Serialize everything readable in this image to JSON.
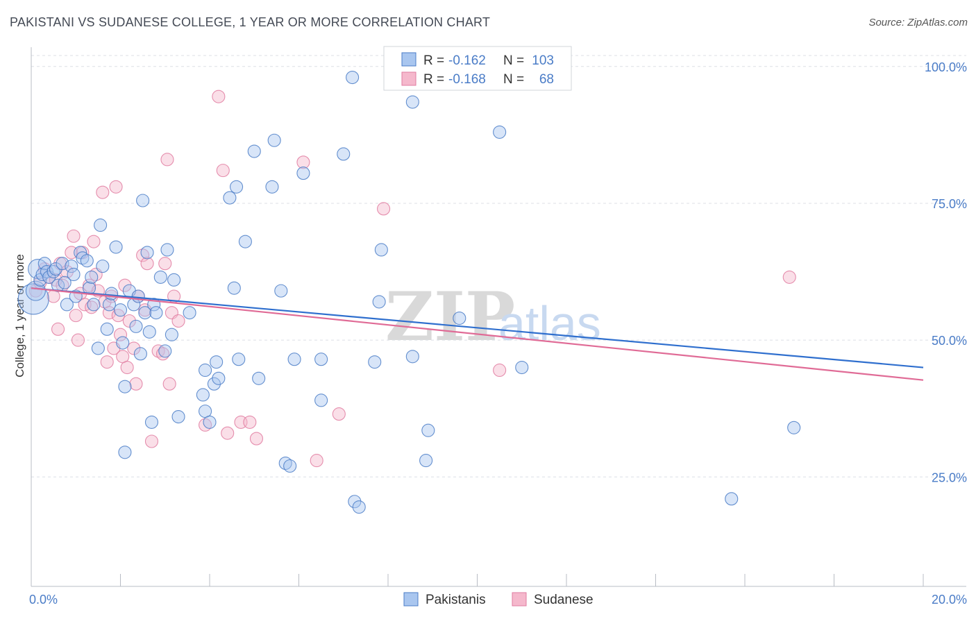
{
  "header": {
    "title": "PAKISTANI VS SUDANESE COLLEGE, 1 YEAR OR MORE CORRELATION CHART",
    "source": "Source: ZipAtlas.com"
  },
  "watermark": {
    "zip": "ZIP",
    "atlas": "atlas"
  },
  "colors": {
    "blue": "#4a7cc7",
    "blue_fill": "#a9c6ef",
    "blue_line": "#2f6fce",
    "pink": "#e07ba0",
    "pink_fill": "#f5b8cc",
    "pink_line": "#e06b96",
    "grid": "#dcdfe5"
  },
  "legend": {
    "r_label": "R =",
    "n_label": "N =",
    "rows": [
      {
        "series": "Pakistanis",
        "r": "-0.162",
        "n": "103"
      },
      {
        "series": "Sudanese",
        "r": "-0.168",
        "n": "68"
      }
    ]
  },
  "chart_data": {
    "type": "scatter",
    "title": "PAKISTANI VS SUDANESE COLLEGE, 1 YEAR OR MORE CORRELATION CHART",
    "ylabel": "College, 1 year or more",
    "xlim": [
      0,
      20
    ],
    "ylim": [
      5,
      102
    ],
    "x_tick_labels": [
      {
        "value": 0,
        "label": "0.0%"
      },
      {
        "value": 20,
        "label": "20.0%"
      }
    ],
    "y_tick_labels": [
      {
        "value": 100,
        "label": "100.0%"
      },
      {
        "value": 75,
        "label": "75.0%"
      },
      {
        "value": 50,
        "label": "50.0%"
      },
      {
        "value": 25,
        "label": "25.0%"
      }
    ],
    "grid": "horizontal dashed",
    "legend_position": "top-center",
    "series": [
      {
        "name": "Pakistanis",
        "color": "#4a7cc7",
        "trend": {
          "x": [
            0,
            20
          ],
          "y": [
            59.5,
            45.0
          ]
        },
        "points": [
          [
            0.05,
            57.5
          ],
          [
            0.1,
            59
          ],
          [
            0.15,
            63
          ],
          [
            0.2,
            61
          ],
          [
            0.25,
            62
          ],
          [
            0.3,
            64
          ],
          [
            0.35,
            62.5
          ],
          [
            0.4,
            61.5
          ],
          [
            0.5,
            62.5
          ],
          [
            0.55,
            63
          ],
          [
            0.6,
            60
          ],
          [
            0.7,
            64
          ],
          [
            0.75,
            60.5
          ],
          [
            0.8,
            56.5
          ],
          [
            0.9,
            63.5
          ],
          [
            0.95,
            62
          ],
          [
            1.0,
            58
          ],
          [
            1.1,
            66
          ],
          [
            1.15,
            65
          ],
          [
            1.25,
            64.5
          ],
          [
            1.3,
            59.5
          ],
          [
            1.35,
            61.5
          ],
          [
            1.4,
            56.5
          ],
          [
            1.5,
            48.5
          ],
          [
            1.55,
            71
          ],
          [
            1.6,
            63.5
          ],
          [
            1.7,
            52
          ],
          [
            1.75,
            56.5
          ],
          [
            1.8,
            58.5
          ],
          [
            1.9,
            67
          ],
          [
            2.0,
            55.5
          ],
          [
            2.05,
            49.5
          ],
          [
            2.1,
            41.5
          ],
          [
            2.1,
            29.5
          ],
          [
            2.2,
            59
          ],
          [
            2.3,
            56.5
          ],
          [
            2.35,
            52.5
          ],
          [
            2.4,
            58
          ],
          [
            2.45,
            47.5
          ],
          [
            2.5,
            75.5
          ],
          [
            2.55,
            55
          ],
          [
            2.6,
            66
          ],
          [
            2.65,
            51.5
          ],
          [
            2.7,
            35
          ],
          [
            2.75,
            56.5
          ],
          [
            2.8,
            55
          ],
          [
            2.9,
            61.5
          ],
          [
            3.0,
            48
          ],
          [
            3.05,
            66.5
          ],
          [
            3.15,
            51
          ],
          [
            3.2,
            61
          ],
          [
            3.3,
            36
          ],
          [
            3.55,
            55
          ],
          [
            3.85,
            40
          ],
          [
            3.9,
            37
          ],
          [
            3.9,
            44.5
          ],
          [
            4.0,
            35
          ],
          [
            4.1,
            42
          ],
          [
            4.15,
            46
          ],
          [
            4.2,
            43
          ],
          [
            4.45,
            76
          ],
          [
            4.55,
            59.5
          ],
          [
            4.6,
            78
          ],
          [
            4.65,
            46.5
          ],
          [
            4.8,
            68
          ],
          [
            5.0,
            84.5
          ],
          [
            5.1,
            43
          ],
          [
            5.4,
            78
          ],
          [
            5.45,
            86.5
          ],
          [
            5.6,
            59
          ],
          [
            5.7,
            27.5
          ],
          [
            5.8,
            27
          ],
          [
            5.9,
            46.5
          ],
          [
            6.1,
            80.5
          ],
          [
            6.5,
            46.5
          ],
          [
            6.5,
            39
          ],
          [
            7.0,
            84
          ],
          [
            7.2,
            98
          ],
          [
            7.25,
            20.5
          ],
          [
            7.35,
            19.5
          ],
          [
            7.7,
            46
          ],
          [
            7.8,
            57
          ],
          [
            7.85,
            66.5
          ],
          [
            8.55,
            93.5
          ],
          [
            8.55,
            47
          ],
          [
            8.85,
            28
          ],
          [
            8.9,
            33.5
          ],
          [
            9.35,
            98.5
          ],
          [
            9.6,
            54
          ],
          [
            10.5,
            88
          ],
          [
            11.0,
            45
          ],
          [
            15.7,
            21
          ],
          [
            17.1,
            34
          ]
        ]
      },
      {
        "name": "Sudanese",
        "color": "#e07ba0",
        "trend": {
          "x": [
            0,
            20
          ],
          "y": [
            59.5,
            42.7
          ]
        },
        "points": [
          [
            0.1,
            59
          ],
          [
            0.2,
            60.5
          ],
          [
            0.3,
            63
          ],
          [
            0.4,
            61.5
          ],
          [
            0.5,
            58
          ],
          [
            0.55,
            61
          ],
          [
            0.6,
            52
          ],
          [
            0.65,
            64
          ],
          [
            0.7,
            60
          ],
          [
            0.8,
            62.5
          ],
          [
            0.9,
            66
          ],
          [
            0.95,
            69
          ],
          [
            1.0,
            54.5
          ],
          [
            1.05,
            50
          ],
          [
            1.1,
            58.5
          ],
          [
            1.15,
            66
          ],
          [
            1.2,
            56.5
          ],
          [
            1.3,
            60
          ],
          [
            1.35,
            56
          ],
          [
            1.4,
            68
          ],
          [
            1.45,
            62
          ],
          [
            1.5,
            59
          ],
          [
            1.6,
            77
          ],
          [
            1.65,
            57
          ],
          [
            1.7,
            46
          ],
          [
            1.75,
            55
          ],
          [
            1.8,
            58
          ],
          [
            1.85,
            48.5
          ],
          [
            1.9,
            78
          ],
          [
            1.95,
            54.5
          ],
          [
            2.0,
            51
          ],
          [
            2.05,
            47
          ],
          [
            2.1,
            60
          ],
          [
            2.15,
            45
          ],
          [
            2.2,
            53.5
          ],
          [
            2.3,
            48.5
          ],
          [
            2.35,
            42
          ],
          [
            2.4,
            58
          ],
          [
            2.5,
            65.5
          ],
          [
            2.55,
            55.5
          ],
          [
            2.6,
            64
          ],
          [
            2.7,
            31.5
          ],
          [
            2.85,
            48
          ],
          [
            2.95,
            47.5
          ],
          [
            3.0,
            64
          ],
          [
            3.05,
            83
          ],
          [
            3.1,
            42
          ],
          [
            3.15,
            55
          ],
          [
            3.2,
            58
          ],
          [
            3.3,
            53.5
          ],
          [
            3.9,
            34.5
          ],
          [
            4.2,
            94.5
          ],
          [
            4.3,
            81
          ],
          [
            4.4,
            33
          ],
          [
            4.7,
            35
          ],
          [
            4.9,
            35
          ],
          [
            5.05,
            32
          ],
          [
            6.1,
            82.5
          ],
          [
            6.4,
            28
          ],
          [
            6.9,
            36.5
          ],
          [
            7.9,
            74
          ],
          [
            10.5,
            44.5
          ],
          [
            17.0,
            61.5
          ]
        ]
      }
    ]
  }
}
